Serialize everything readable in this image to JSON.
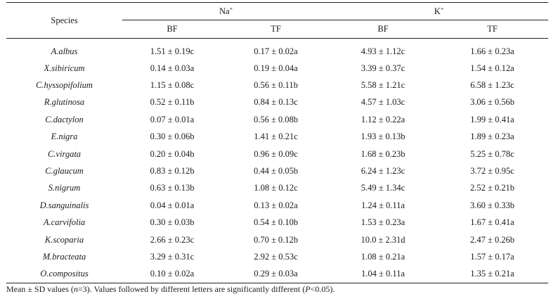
{
  "table": {
    "header": {
      "species": "Species",
      "groups": [
        {
          "base": "Na",
          "sup": "+"
        },
        {
          "base": "K",
          "sup": "+"
        }
      ],
      "subcols": [
        "BF",
        "TF",
        "BF",
        "TF"
      ]
    },
    "rows": [
      {
        "species": "A.albus",
        "cells": [
          "1.51 ± 0.19c",
          "0.17 ± 0.02a",
          "4.93 ± 1.12c",
          "1.66 ± 0.23a"
        ]
      },
      {
        "species": "X.sibiricum",
        "cells": [
          "0.14 ± 0.03a",
          "0.19 ± 0.04a",
          "3.39 ± 0.37c",
          "1.54 ± 0.12a"
        ]
      },
      {
        "species": "C.hyssopifolium",
        "cells": [
          "1.15 ± 0.08c",
          "0.56 ± 0.11b",
          "5.58 ± 1.21c",
          "6.58 ± 1.23c"
        ]
      },
      {
        "species": "R.glutinosa",
        "cells": [
          "0.52 ± 0.11b",
          "0.84 ± 0.13c",
          "4.57 ± 1.03c",
          "3.06 ± 0.56b"
        ]
      },
      {
        "species": "C.dactylon",
        "cells": [
          "0.07 ± 0.01a",
          "0.56 ± 0.08b",
          "1.12 ± 0.22a",
          "1.99 ± 0.41a"
        ]
      },
      {
        "species": "E.nigra",
        "cells": [
          "0.30 ± 0.06b",
          "1.41 ± 0.21c",
          "1.93 ± 0.13b",
          "1.89 ± 0.23a"
        ]
      },
      {
        "species": "C.virgata",
        "cells": [
          "0.20 ± 0.04b",
          "0.96 ± 0.09c",
          "1.68 ± 0.23b",
          "5.25 ± 0.78c"
        ]
      },
      {
        "species": "C.glaucum",
        "cells": [
          "0.83 ± 0.12b",
          "0.44 ± 0.05b",
          "6.24 ± 1.23c",
          "3.72 ± 0.95c"
        ]
      },
      {
        "species": "S.nigrum",
        "cells": [
          "0.63 ± 0.13b",
          "1.08 ± 0.12c",
          "5.49 ± 1.34c",
          "2.52 ± 0.21b"
        ]
      },
      {
        "species": "D.sanguinalis",
        "cells": [
          "0.04 ± 0.01a",
          "0.13 ± 0.02a",
          "1.24 ± 0.11a",
          "3.60 ± 0.33b"
        ]
      },
      {
        "species": "A.carvifolia",
        "cells": [
          "0.30 ± 0.03b",
          "0.54 ± 0.10b",
          "1.53 ± 0.23a",
          "1.67 ± 0.41a"
        ]
      },
      {
        "species": "K.scoparia",
        "cells": [
          "2.66 ± 0.23c",
          "0.70 ± 0.12b",
          "10.0 ± 2.31d",
          "2.47 ± 0.26b"
        ]
      },
      {
        "species": "M.bracteata",
        "cells": [
          "3.29 ± 0.31c",
          "2.92 ± 0.53c",
          "1.08 ± 0.21a",
          "1.57 ± 0.17a"
        ]
      },
      {
        "species": "O.compositus",
        "cells": [
          "0.10 ± 0.02a",
          "0.29 ± 0.03a",
          "1.04 ± 0.11a",
          "1.35 ± 0.21a"
        ]
      }
    ]
  },
  "footnote": {
    "part1": "Mean ± SD values (",
    "n_italic": "n",
    "part2": "=3). Values followed by different letters are significantly different (",
    "p_italic": "P",
    "part3": "<0.05)."
  }
}
